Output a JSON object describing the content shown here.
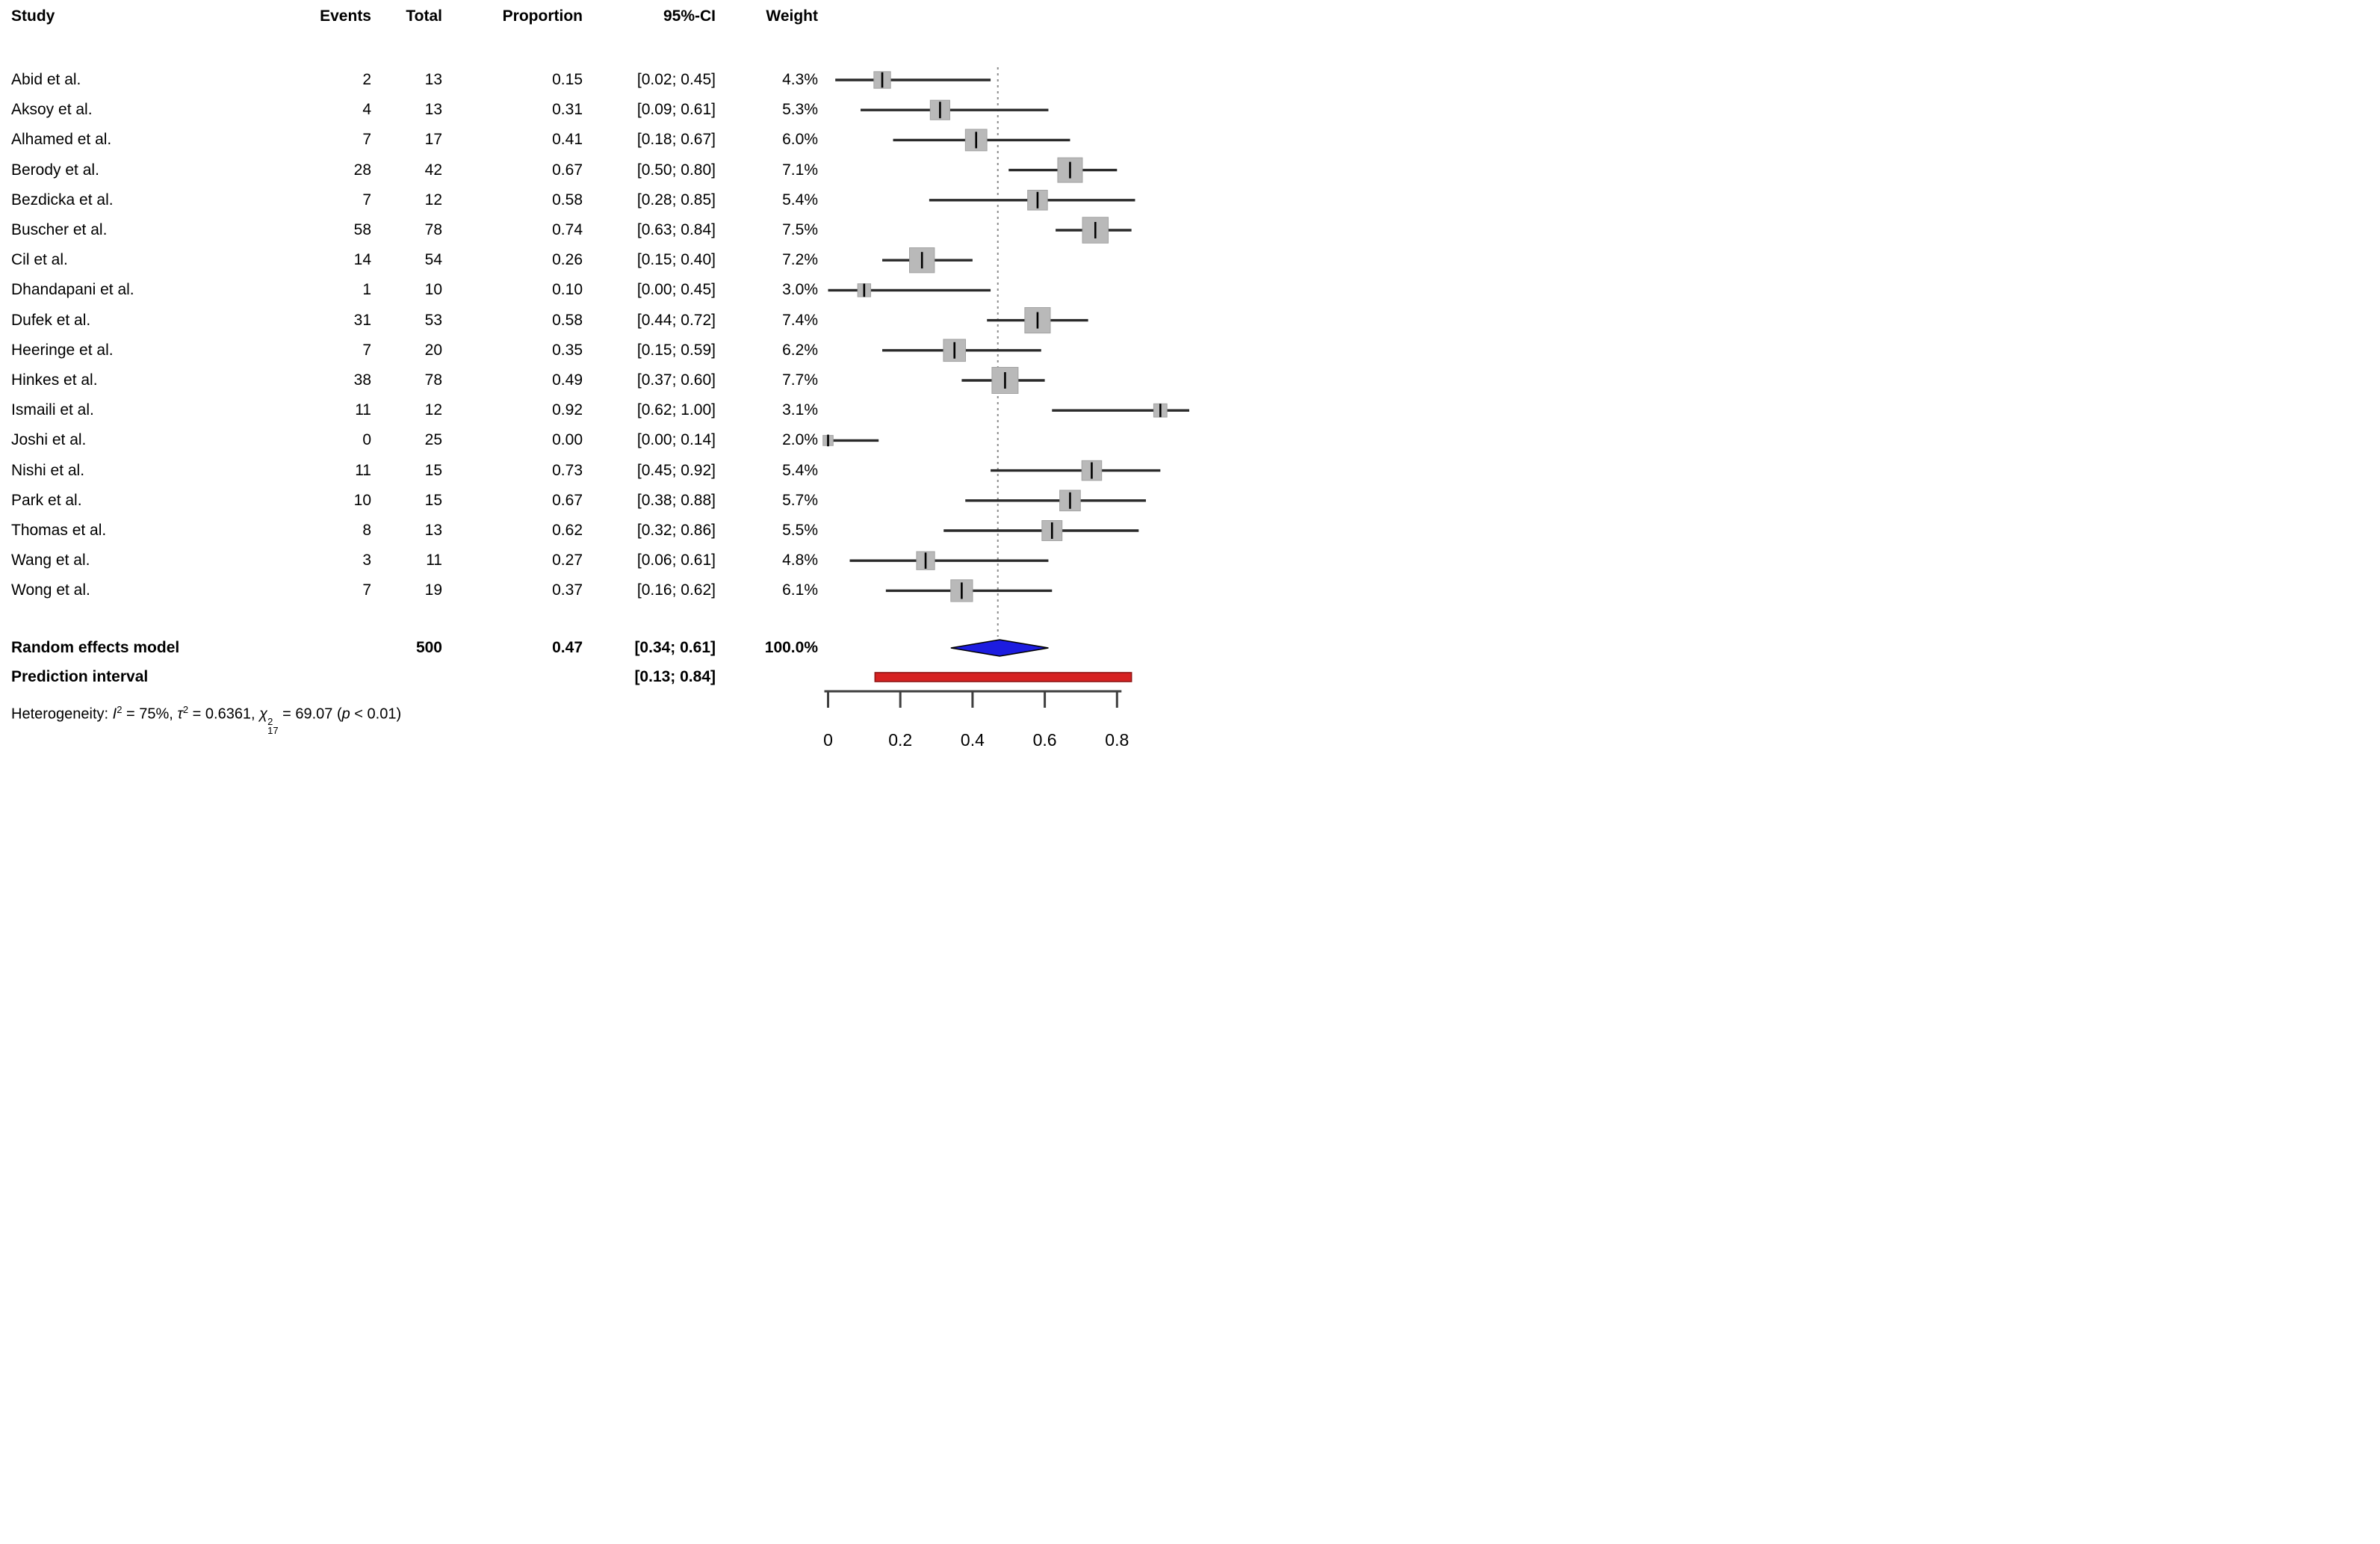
{
  "header": {
    "study": "Study",
    "events": "Events",
    "total": "Total",
    "proportion": "Proportion",
    "ci": "95%-CI",
    "weight": "Weight"
  },
  "chart_data": {
    "type": "forest",
    "xlabel": "",
    "xlim": [
      0,
      1
    ],
    "vline": 0.47,
    "axis_ticks": [
      {
        "v": 0,
        "label": "0"
      },
      {
        "v": 0.2,
        "label": "0.2"
      },
      {
        "v": 0.4,
        "label": "0.4"
      },
      {
        "v": 0.6,
        "label": "0.6"
      },
      {
        "v": 0.8,
        "label": "0.8"
      }
    ],
    "studies": [
      {
        "name": "Abid et al.",
        "events": "2",
        "total": "13",
        "prop_text": "0.15",
        "prop": 0.15,
        "ci_text": "[0.02; 0.45]",
        "lo": 0.02,
        "hi": 0.45,
        "weight_text": "4.3%",
        "weight": 4.3
      },
      {
        "name": "Aksoy et al.",
        "events": "4",
        "total": "13",
        "prop_text": "0.31",
        "prop": 0.31,
        "ci_text": "[0.09; 0.61]",
        "lo": 0.09,
        "hi": 0.61,
        "weight_text": "5.3%",
        "weight": 5.3
      },
      {
        "name": "Alhamed et al.",
        "events": "7",
        "total": "17",
        "prop_text": "0.41",
        "prop": 0.41,
        "ci_text": "[0.18; 0.67]",
        "lo": 0.18,
        "hi": 0.67,
        "weight_text": "6.0%",
        "weight": 6.0
      },
      {
        "name": "Berody et al.",
        "events": "28",
        "total": "42",
        "prop_text": "0.67",
        "prop": 0.67,
        "ci_text": "[0.50; 0.80]",
        "lo": 0.5,
        "hi": 0.8,
        "weight_text": "7.1%",
        "weight": 7.1
      },
      {
        "name": "Bezdicka et al.",
        "events": "7",
        "total": "12",
        "prop_text": "0.58",
        "prop": 0.58,
        "ci_text": "[0.28; 0.85]",
        "lo": 0.28,
        "hi": 0.85,
        "weight_text": "5.4%",
        "weight": 5.4
      },
      {
        "name": "Buscher et al.",
        "events": "58",
        "total": "78",
        "prop_text": "0.74",
        "prop": 0.74,
        "ci_text": "[0.63; 0.84]",
        "lo": 0.63,
        "hi": 0.84,
        "weight_text": "7.5%",
        "weight": 7.5
      },
      {
        "name": "Cil et al.",
        "events": "14",
        "total": "54",
        "prop_text": "0.26",
        "prop": 0.26,
        "ci_text": "[0.15; 0.40]",
        "lo": 0.15,
        "hi": 0.4,
        "weight_text": "7.2%",
        "weight": 7.2
      },
      {
        "name": "Dhandapani et al.",
        "events": "1",
        "total": "10",
        "prop_text": "0.10",
        "prop": 0.1,
        "ci_text": "[0.00; 0.45]",
        "lo": 0.0,
        "hi": 0.45,
        "weight_text": "3.0%",
        "weight": 3.0
      },
      {
        "name": "Dufek et al.",
        "events": "31",
        "total": "53",
        "prop_text": "0.58",
        "prop": 0.58,
        "ci_text": "[0.44; 0.72]",
        "lo": 0.44,
        "hi": 0.72,
        "weight_text": "7.4%",
        "weight": 7.4
      },
      {
        "name": "Heeringe et al.",
        "events": "7",
        "total": "20",
        "prop_text": "0.35",
        "prop": 0.35,
        "ci_text": "[0.15; 0.59]",
        "lo": 0.15,
        "hi": 0.59,
        "weight_text": "6.2%",
        "weight": 6.2
      },
      {
        "name": "Hinkes et al.",
        "events": "38",
        "total": "78",
        "prop_text": "0.49",
        "prop": 0.49,
        "ci_text": "[0.37; 0.60]",
        "lo": 0.37,
        "hi": 0.6,
        "weight_text": "7.7%",
        "weight": 7.7
      },
      {
        "name": "Ismaili et al.",
        "events": "11",
        "total": "12",
        "prop_text": "0.92",
        "prop": 0.92,
        "ci_text": "[0.62; 1.00]",
        "lo": 0.62,
        "hi": 1.0,
        "weight_text": "3.1%",
        "weight": 3.1
      },
      {
        "name": "Joshi et al.",
        "events": "0",
        "total": "25",
        "prop_text": "0.00",
        "prop": 0.0,
        "ci_text": "[0.00; 0.14]",
        "lo": 0.0,
        "hi": 0.14,
        "weight_text": "2.0%",
        "weight": 2.0
      },
      {
        "name": "Nishi et al.",
        "events": "11",
        "total": "15",
        "prop_text": "0.73",
        "prop": 0.73,
        "ci_text": "[0.45; 0.92]",
        "lo": 0.45,
        "hi": 0.92,
        "weight_text": "5.4%",
        "weight": 5.4
      },
      {
        "name": "Park et al.",
        "events": "10",
        "total": "15",
        "prop_text": "0.67",
        "prop": 0.67,
        "ci_text": "[0.38; 0.88]",
        "lo": 0.38,
        "hi": 0.88,
        "weight_text": "5.7%",
        "weight": 5.7
      },
      {
        "name": "Thomas et al.",
        "events": "8",
        "total": "13",
        "prop_text": "0.62",
        "prop": 0.62,
        "ci_text": "[0.32; 0.86]",
        "lo": 0.32,
        "hi": 0.86,
        "weight_text": "5.5%",
        "weight": 5.5
      },
      {
        "name": "Wang et al.",
        "events": "3",
        "total": "11",
        "prop_text": "0.27",
        "prop": 0.27,
        "ci_text": "[0.06; 0.61]",
        "lo": 0.06,
        "hi": 0.61,
        "weight_text": "4.8%",
        "weight": 4.8
      },
      {
        "name": "Wong et al.",
        "events": "7",
        "total": "19",
        "prop_text": "0.37",
        "prop": 0.37,
        "ci_text": "[0.16; 0.62]",
        "lo": 0.16,
        "hi": 0.62,
        "weight_text": "6.1%",
        "weight": 6.1
      }
    ],
    "summary": {
      "random_effects": {
        "label": "Random effects model",
        "total": "500",
        "prop_text": "0.47",
        "prop": 0.47,
        "ci_text": "[0.34; 0.61]",
        "lo": 0.34,
        "hi": 0.61,
        "weight_text": "100.0%"
      },
      "prediction": {
        "label": "Prediction interval",
        "ci_text": "[0.13; 0.84]",
        "lo": 0.13,
        "hi": 0.84
      }
    },
    "heterogeneity": {
      "prefix": "Heterogeneity: ",
      "i_sym": "I",
      "sup_two": "2",
      "i_val": " = 75%, ",
      "tau_sym": "τ",
      "tau_val": " = 0.6361, ",
      "chi_sym": "χ",
      "chi_sup": "2",
      "chi_sub": "17",
      "chi_val": " = 69.07 (",
      "p_sym": "p",
      "p_tail": " < 0.01)"
    }
  },
  "colors": {
    "square": "#b9b9b9",
    "square_border": "#a2a2a2",
    "ci_line": "#2a2a2a",
    "point_tick": "#000000",
    "dotted_line": "#8c8c8c",
    "diamond": "#1c1ce0",
    "diamond_border": "#000000",
    "prediction_bar": "#d62222",
    "prediction_bar_border": "#8f1414",
    "axis": "#3f3f3f",
    "text": "#000000"
  }
}
